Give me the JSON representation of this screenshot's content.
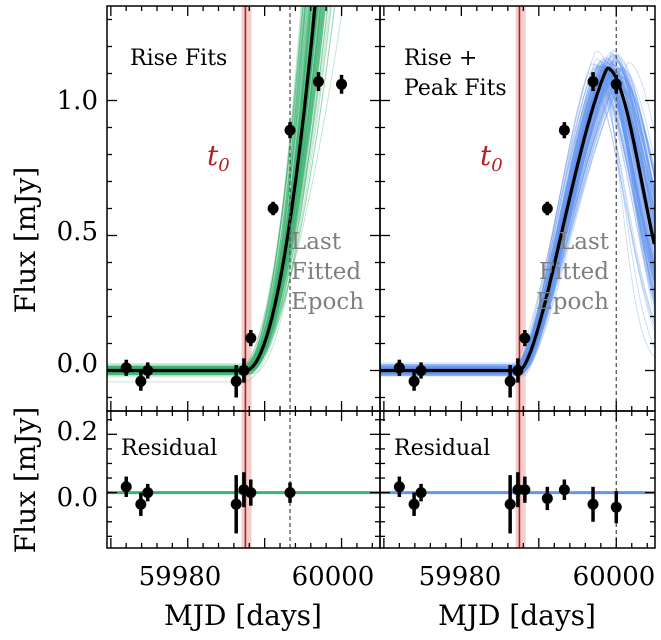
{
  "chart_data": [
    {
      "type": "line",
      "panel": "Rise Fits",
      "label": "Rise Fits",
      "annotation_lines": [
        "Last",
        "Fitted",
        "Epoch"
      ],
      "t0_label": "t",
      "t0_sub": "0",
      "xlabel": "MJD [days]",
      "ylabel": "Flux [mJy]",
      "xlim": [
        59969.5,
        60005
      ],
      "ylim": [
        -0.15,
        1.35
      ],
      "xticks": [
        59980,
        60000
      ],
      "yticks": [
        0.0,
        0.5,
        1.0
      ],
      "ytick_labels": [
        "0.0",
        "0.5",
        "1.0"
      ],
      "t0": 59987.5,
      "t0_band": [
        59987.0,
        59988.3
      ],
      "last_fitted_epoch": 59993.3,
      "fit_color": "#3cb371",
      "observations": [
        {
          "x": 59972.0,
          "y": 0.01,
          "err": 0.03
        },
        {
          "x": 59973.9,
          "y": -0.04,
          "err": 0.035
        },
        {
          "x": 59974.8,
          "y": 0.0,
          "err": 0.03
        },
        {
          "x": 59986.3,
          "y": -0.04,
          "err": 0.06
        },
        {
          "x": 59987.3,
          "y": 0.0,
          "err": 0.045
        },
        {
          "x": 59988.2,
          "y": 0.12,
          "err": 0.03
        },
        {
          "x": 59991.1,
          "y": 0.6,
          "err": 0.025
        },
        {
          "x": 59993.3,
          "y": 0.89,
          "err": 0.03
        },
        {
          "x": 59997.0,
          "y": 1.07,
          "err": 0.035
        },
        {
          "x": 60000.0,
          "y": 1.06,
          "err": 0.035
        }
      ],
      "residual": {
        "label": "Residual",
        "ylabel": "Flux [mJy]",
        "ylim": [
          -0.19,
          0.28
        ],
        "yticks": [
          0.0,
          0.2
        ],
        "ytick_labels": [
          "0.0",
          "0.2"
        ],
        "xticks": [
          59980,
          60000
        ],
        "xtick_labels": [
          "59980",
          "60000"
        ],
        "observations": [
          {
            "x": 59972.0,
            "y": 0.02,
            "err": 0.035
          },
          {
            "x": 59973.9,
            "y": -0.04,
            "err": 0.04
          },
          {
            "x": 59974.8,
            "y": 0.0,
            "err": 0.03
          },
          {
            "x": 59986.3,
            "y": -0.04,
            "err": 0.1
          },
          {
            "x": 59987.3,
            "y": 0.01,
            "err": 0.06
          },
          {
            "x": 59988.2,
            "y": 0.0,
            "err": 0.045
          },
          {
            "x": 59993.3,
            "y": 0.0,
            "err": 0.035
          }
        ]
      }
    },
    {
      "type": "line",
      "panel": "Rise + Peak Fits",
      "label": [
        "Rise +",
        "Peak Fits"
      ],
      "annotation_lines": [
        "Last",
        "Fitted",
        "Epoch"
      ],
      "t0_label": "t",
      "t0_sub": "0",
      "xlabel": "MJD [days]",
      "xlim": [
        59969.5,
        60005
      ],
      "ylim": [
        -0.15,
        1.35
      ],
      "xticks": [
        59980,
        60000
      ],
      "t0": 59987.5,
      "t0_band": [
        59987.0,
        59988.3
      ],
      "last_fitted_epoch": 60000.0,
      "fit_color": "#6495ed",
      "observations": [
        {
          "x": 59972.0,
          "y": 0.01,
          "err": 0.03
        },
        {
          "x": 59973.9,
          "y": -0.04,
          "err": 0.035
        },
        {
          "x": 59974.8,
          "y": 0.0,
          "err": 0.03
        },
        {
          "x": 59986.3,
          "y": -0.04,
          "err": 0.06
        },
        {
          "x": 59987.3,
          "y": 0.0,
          "err": 0.045
        },
        {
          "x": 59988.2,
          "y": 0.12,
          "err": 0.03
        },
        {
          "x": 59991.1,
          "y": 0.6,
          "err": 0.025
        },
        {
          "x": 59993.3,
          "y": 0.89,
          "err": 0.03
        },
        {
          "x": 59997.0,
          "y": 1.07,
          "err": 0.035
        },
        {
          "x": 60000.0,
          "y": 1.06,
          "err": 0.035
        }
      ],
      "residual": {
        "label": "Residual",
        "ylim": [
          -0.19,
          0.28
        ],
        "yticks": [
          0.0,
          0.2
        ],
        "xticks": [
          59980,
          60000
        ],
        "xtick_labels": [
          "59980",
          "60000"
        ],
        "observations": [
          {
            "x": 59972.0,
            "y": 0.02,
            "err": 0.035
          },
          {
            "x": 59973.9,
            "y": -0.04,
            "err": 0.04
          },
          {
            "x": 59974.8,
            "y": 0.0,
            "err": 0.03
          },
          {
            "x": 59986.3,
            "y": -0.04,
            "err": 0.1
          },
          {
            "x": 59987.3,
            "y": 0.01,
            "err": 0.06
          },
          {
            "x": 59988.2,
            "y": 0.01,
            "err": 0.045
          },
          {
            "x": 59991.1,
            "y": -0.02,
            "err": 0.04
          },
          {
            "x": 59993.3,
            "y": 0.01,
            "err": 0.035
          },
          {
            "x": 59997.0,
            "y": -0.04,
            "err": 0.06
          },
          {
            "x": 60000.0,
            "y": -0.05,
            "err": 0.055
          }
        ]
      }
    }
  ]
}
